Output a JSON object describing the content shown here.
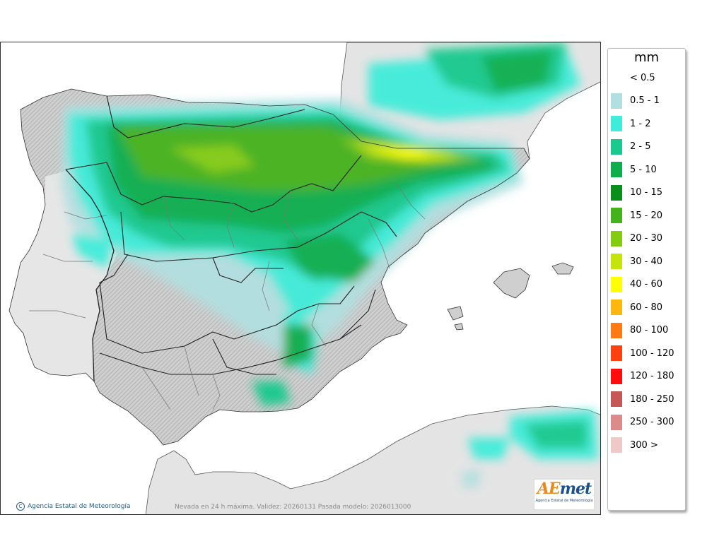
{
  "legend": {
    "unit": "mm",
    "items": [
      {
        "label": "< 0.5",
        "color": "#ffffff"
      },
      {
        "label": "0.5 - 1",
        "color": "#b2dfe0"
      },
      {
        "label": "1 - 2",
        "color": "#3fecd9"
      },
      {
        "label": "2 - 5",
        "color": "#19c98d"
      },
      {
        "label": "5 - 10",
        "color": "#0fae4d"
      },
      {
        "label": "10 - 15",
        "color": "#098f1a"
      },
      {
        "label": "15 - 20",
        "color": "#44b21b"
      },
      {
        "label": "20 - 30",
        "color": "#84cc12"
      },
      {
        "label": "30 - 40",
        "color": "#c4e40c"
      },
      {
        "label": "40 - 60",
        "color": "#ffff00"
      },
      {
        "label": "60 - 80",
        "color": "#ffb60e"
      },
      {
        "label": "80 - 100",
        "color": "#ff7a12"
      },
      {
        "label": "100 - 120",
        "color": "#ff4110"
      },
      {
        "label": "120 - 180",
        "color": "#ff0c0c"
      },
      {
        "label": "180 - 250",
        "color": "#c65757"
      },
      {
        "label": "250 - 300",
        "color": "#dc8a8a"
      },
      {
        "label": "300 >",
        "color": "#efc8c8"
      }
    ]
  },
  "footer": {
    "credit": "Agencia Estatal de Meteorología",
    "note": "Nevada en 24 h máxima. Validez: 20260131 Pasada modelo: 2026013000"
  },
  "logo": {
    "mark_a": "AE",
    "mark_b": "met",
    "sub": "Agencia Estatal de Meteorología"
  }
}
